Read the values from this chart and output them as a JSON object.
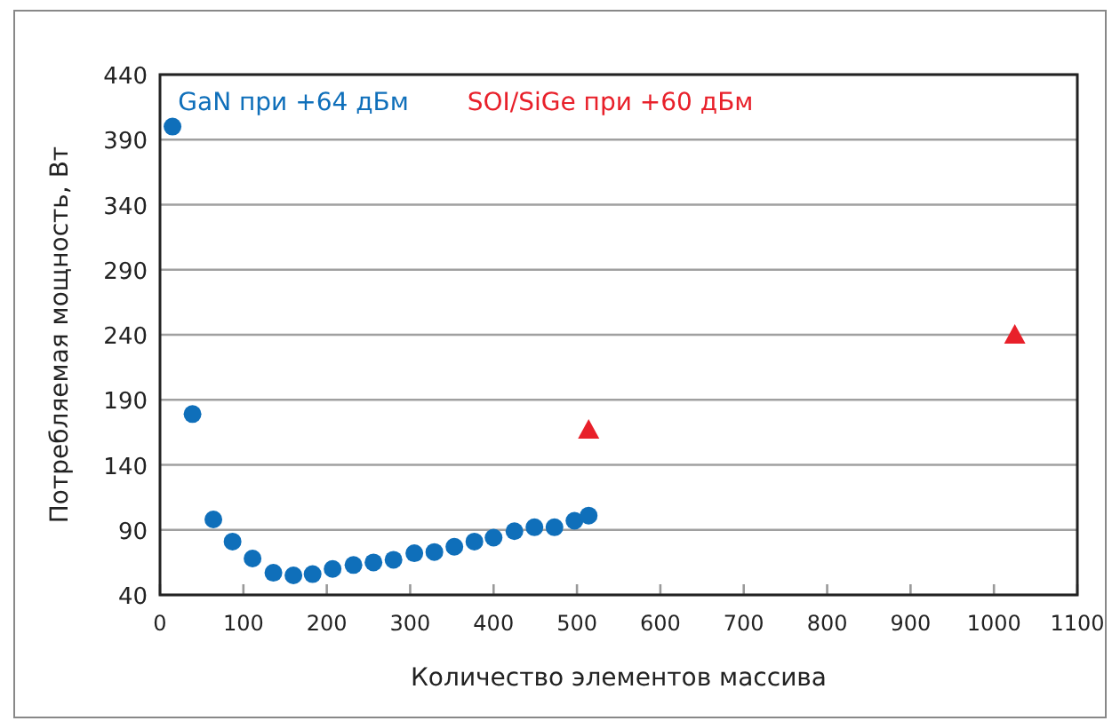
{
  "chart_data": {
    "type": "scatter",
    "xlabel": "Количество элементов массива",
    "ylabel": "Потребляемая мощность, Вт",
    "xlim": [
      0,
      1100
    ],
    "xticks": [
      0,
      100,
      200,
      300,
      400,
      500,
      600,
      700,
      800,
      900,
      1000,
      1100
    ],
    "ylim": [
      40,
      440
    ],
    "yticks": [
      40,
      90,
      140,
      190,
      240,
      290,
      340,
      390,
      440
    ],
    "grid": "y",
    "legend": "top",
    "series": [
      {
        "name": "GaN при +64 дБм",
        "color": "#0f6fba",
        "marker": "circle",
        "x": [
          15,
          39,
          64,
          87,
          111,
          136,
          160,
          183,
          207,
          232,
          256,
          280,
          305,
          329,
          353,
          377,
          400,
          425,
          449,
          473,
          497,
          514
        ],
        "values": [
          400,
          179,
          98,
          81,
          68,
          57,
          55,
          56,
          60,
          63,
          65,
          67,
          72,
          73,
          77,
          81,
          84,
          89,
          92,
          92,
          97,
          101
        ]
      },
      {
        "name": "SOI/SiGe при +60 дБм",
        "color": "#e8202a",
        "marker": "triangle",
        "x": [
          514,
          1025
        ],
        "values": [
          167,
          240
        ]
      }
    ]
  }
}
